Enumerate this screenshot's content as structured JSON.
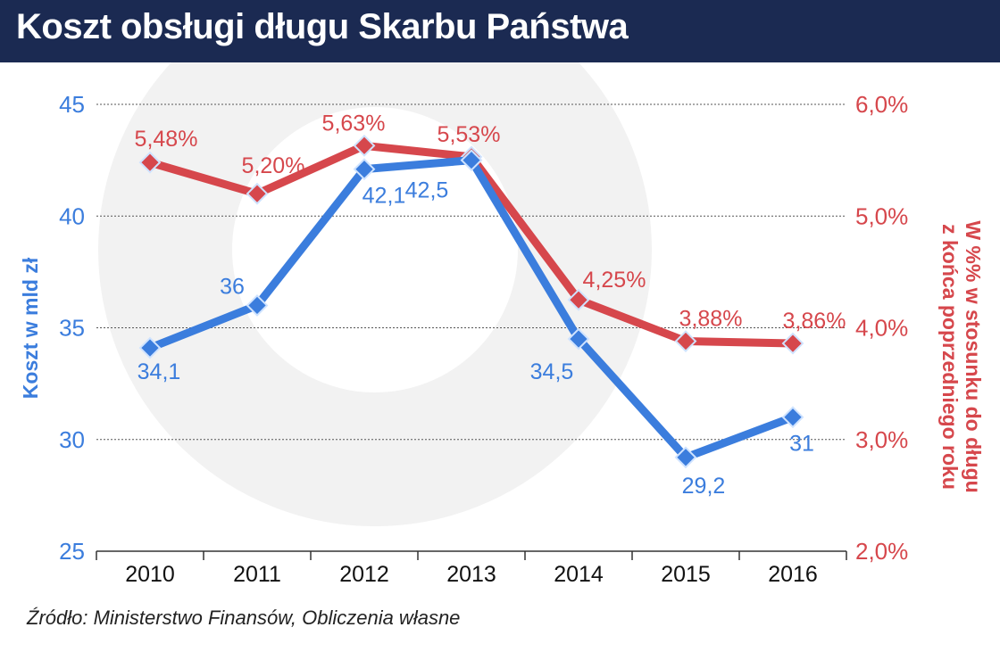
{
  "header": {
    "title": "Koszt obsługi długu Skarbu Państwa"
  },
  "source": "Źródło: Ministerstwo Finansów, Obliczenia własne",
  "colors": {
    "header_bg": "#1b2a52",
    "blue": "#3b7ddd",
    "red": "#d6474c",
    "watermark": "#f1f1f1"
  },
  "chart_data": {
    "type": "line",
    "title": "Koszt obsługi długu Skarbu Państwa",
    "categories": [
      "2010",
      "2011",
      "2012",
      "2013",
      "2014",
      "2015",
      "2016"
    ],
    "y_left": {
      "label": "Koszt w mld zł",
      "range": [
        25,
        45
      ],
      "ticks": [
        25,
        30,
        35,
        40,
        45
      ],
      "tick_labels": [
        "25",
        "30",
        "35",
        "40",
        "45"
      ]
    },
    "y_right": {
      "label_line1": "W %% w stosunku do długu",
      "label_line2": "z końca poprzedniego roku",
      "range": [
        2.0,
        6.0
      ],
      "ticks": [
        2.0,
        3.0,
        4.0,
        5.0,
        6.0
      ],
      "tick_labels": [
        "2,0%",
        "3,0%",
        "4,0%",
        "5,0%",
        "6,0%"
      ]
    },
    "gridlines": true,
    "series": [
      {
        "name": "Koszt w mld zł",
        "axis": "left",
        "color": "#3b7ddd",
        "values": [
          34.1,
          36,
          42.1,
          42.5,
          34.5,
          29.2,
          31
        ],
        "labels": [
          "34,1",
          "36",
          "42,1",
          "42,5",
          "34,5",
          "29,2",
          "31"
        ]
      },
      {
        "name": "W %% w stosunku do długu z końca poprzedniego roku",
        "axis": "right",
        "color": "#d6474c",
        "values": [
          5.48,
          5.2,
          5.63,
          5.53,
          4.25,
          3.88,
          3.86
        ],
        "labels": [
          "5,48%",
          "5,20%",
          "5,63%",
          "5,53%",
          "4,25%",
          "3,88%",
          "3,86%"
        ]
      }
    ]
  }
}
